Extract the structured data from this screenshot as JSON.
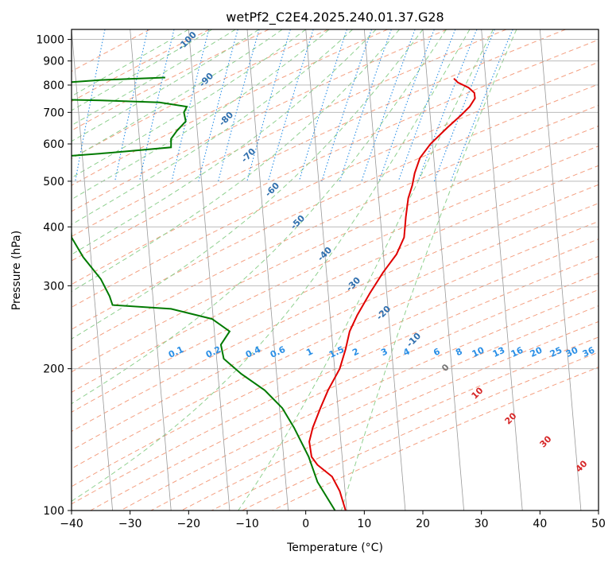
{
  "chart_data": {
    "type": "line",
    "subtype": "skew-t log-p diagram",
    "title": "wetPf2_C2E4.2025.240.01.37.G28",
    "xlabel": "Temperature (°C)",
    "ylabel": "Pressure (hPa)",
    "xlim": [
      -40,
      50
    ],
    "ylim": [
      1050,
      100
    ],
    "y_scale": "log",
    "x_ticks": [
      -40,
      -30,
      -20,
      -10,
      0,
      10,
      20,
      30,
      40,
      50
    ],
    "x_tick_labels": [
      "−40",
      "−30",
      "−20",
      "−10",
      "0",
      "10",
      "20",
      "30",
      "40",
      "50"
    ],
    "y_ticks": [
      100,
      200,
      300,
      400,
      500,
      600,
      700,
      800,
      900,
      1000
    ],
    "y_tick_labels": [
      "100",
      "200",
      "300",
      "400",
      "500",
      "600",
      "700",
      "800",
      "900",
      "1000"
    ],
    "grid": true,
    "colors": {
      "temperature": "#e00000",
      "dewpoint": "#007a00",
      "mixing_ratio": "#2a8fe6",
      "dry_adiabat": "#f4a082",
      "moist_adiabat": "#8fd08f",
      "isotherm": "#999999",
      "grid": "#b0b0b0"
    },
    "series": [
      {
        "role": "temperature",
        "points": [
          {
            "p": 826,
            "x": 25.3
          },
          {
            "p": 810,
            "x": 26.0
          },
          {
            "p": 790,
            "x": 27.8
          },
          {
            "p": 770,
            "x": 28.8
          },
          {
            "p": 750,
            "x": 28.9
          },
          {
            "p": 720,
            "x": 28.0
          },
          {
            "p": 690,
            "x": 26.5
          },
          {
            "p": 650,
            "x": 24.2
          },
          {
            "p": 600,
            "x": 21.3
          },
          {
            "p": 560,
            "x": 19.5
          },
          {
            "p": 520,
            "x": 18.6
          },
          {
            "p": 490,
            "x": 18.2
          },
          {
            "p": 460,
            "x": 17.5
          },
          {
            "p": 420,
            "x": 17.1
          },
          {
            "p": 380,
            "x": 16.8
          },
          {
            "p": 350,
            "x": 15.5
          },
          {
            "p": 320,
            "x": 13.2
          },
          {
            "p": 290,
            "x": 11.0
          },
          {
            "p": 260,
            "x": 8.8
          },
          {
            "p": 240,
            "x": 7.5
          },
          {
            "p": 220,
            "x": 6.8
          },
          {
            "p": 200,
            "x": 5.8
          },
          {
            "p": 180,
            "x": 3.8
          },
          {
            "p": 165,
            "x": 2.5
          },
          {
            "p": 150,
            "x": 1.2
          },
          {
            "p": 140,
            "x": 0.6
          },
          {
            "p": 130,
            "x": 1.0
          },
          {
            "p": 125,
            "x": 2.0
          },
          {
            "p": 118,
            "x": 4.5
          },
          {
            "p": 110,
            "x": 5.8
          },
          {
            "p": 100,
            "x": 6.8
          }
        ]
      },
      {
        "role": "dewpoint",
        "points": [
          {
            "p": 830,
            "x": -24.0
          },
          {
            "p": 820,
            "x": -35.0
          },
          {
            "p": 810,
            "x": -41.0
          },
          {
            "p": 745,
            "x": -41.0
          },
          {
            "p": 742,
            "x": -35.0
          },
          {
            "p": 735,
            "x": -25.0
          },
          {
            "p": 720,
            "x": -20.3
          },
          {
            "p": 700,
            "x": -20.8
          },
          {
            "p": 670,
            "x": -20.5
          },
          {
            "p": 640,
            "x": -22.0
          },
          {
            "p": 615,
            "x": -23.0
          },
          {
            "p": 590,
            "x": -23.0
          },
          {
            "p": 575,
            "x": -33.0
          },
          {
            "p": 565,
            "x": -41.0
          },
          {
            "p": 380,
            "x": -40.0
          },
          {
            "p": 345,
            "x": -38.0
          },
          {
            "p": 310,
            "x": -35.0
          },
          {
            "p": 285,
            "x": -33.5
          },
          {
            "p": 273,
            "x": -33.0
          },
          {
            "p": 268,
            "x": -23.0
          },
          {
            "p": 255,
            "x": -16.0
          },
          {
            "p": 240,
            "x": -13.0
          },
          {
            "p": 225,
            "x": -14.5
          },
          {
            "p": 210,
            "x": -14.0
          },
          {
            "p": 195,
            "x": -11.0
          },
          {
            "p": 180,
            "x": -7.0
          },
          {
            "p": 165,
            "x": -4.0
          },
          {
            "p": 150,
            "x": -2.0
          },
          {
            "p": 130,
            "x": 0.5
          },
          {
            "p": 115,
            "x": 2.0
          },
          {
            "p": 100,
            "x": 5.0
          }
        ]
      }
    ],
    "dry_adiabat_labels": [
      "-100",
      "-90",
      "-80",
      "-70",
      "-60",
      "-50",
      "-40",
      "-30",
      "-20",
      "-10"
    ],
    "mixing_ratio_labels": [
      "0.1",
      "0.2",
      "0.4",
      "0.6",
      "1",
      "1.5",
      "2",
      "3",
      "4",
      "6",
      "8",
      "10",
      "13",
      "16",
      "20",
      "25",
      "30",
      "36"
    ],
    "moist_adiabat_labels": [
      "0",
      "10",
      "20",
      "30",
      "40"
    ]
  }
}
